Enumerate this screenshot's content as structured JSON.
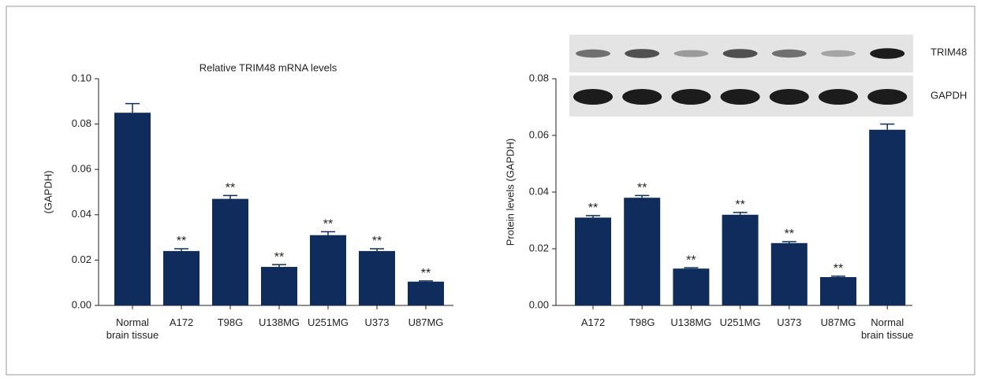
{
  "chart_data": [
    {
      "type": "bar",
      "title": "Relative TRIM48 mRNA levels",
      "y_label": "(GAPDH)",
      "color": "#0f2c5c",
      "categories": [
        "Normal brain tissue",
        "A172",
        "T98G",
        "U138MG",
        "U251MG",
        "U373",
        "U87MG"
      ],
      "values": [
        0.085,
        0.024,
        0.047,
        0.017,
        0.031,
        0.024,
        0.0105
      ],
      "errors": [
        0.004,
        0.001,
        0.0015,
        0.001,
        0.0015,
        0.001,
        0.0003
      ],
      "significance": [
        null,
        "**",
        "**",
        "**",
        "**",
        "**",
        "**"
      ],
      "ylim": [
        0,
        0.1
      ],
      "yticks": [
        {
          "value": 0,
          "label": "0.00"
        },
        0.02,
        0.04,
        0.06,
        0.08,
        {
          "value": 0.1,
          "label": "0.10"
        }
      ]
    },
    {
      "type": "bar",
      "y_label": "Protein levels (GAPDH)",
      "color": "#0f2c5c",
      "categories": [
        "A172",
        "T98G",
        "U138MG",
        "U251MG",
        "U373",
        "U87MG",
        "Normal brain tissue"
      ],
      "values": [
        0.031,
        0.038,
        0.013,
        0.032,
        0.022,
        0.01,
        0.062
      ],
      "errors": [
        0.0007,
        0.0008,
        0.0003,
        0.0008,
        0.0005,
        0.0003,
        0.002
      ],
      "significance": [
        "**",
        "**",
        "**",
        "**",
        "**",
        "**",
        null
      ],
      "blot_labels": [
        "TRIM48",
        "GAPDH"
      ],
      "ylim": [
        0,
        0.08
      ],
      "yticks": [
        {
          "value": 0,
          "label": "0.00"
        },
        0.02,
        0.04,
        0.06,
        0.08
      ]
    }
  ]
}
